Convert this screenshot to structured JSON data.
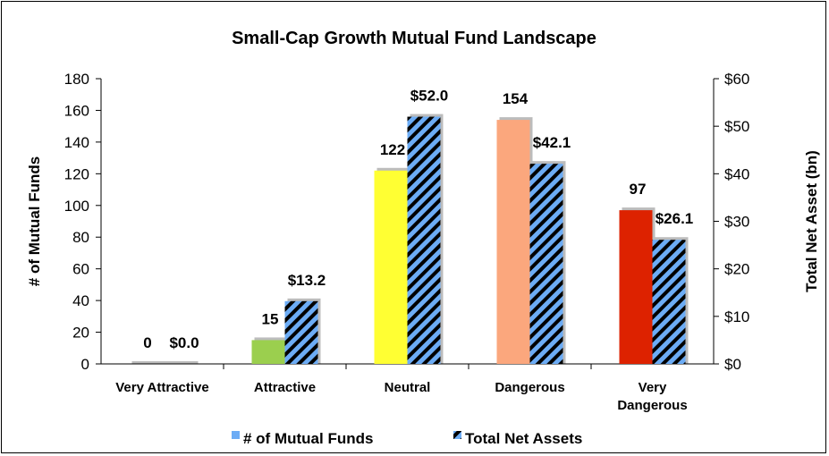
{
  "chart_data": {
    "type": "bar",
    "title": "Small-Cap Growth Mutual Fund Landscape",
    "categories": [
      [
        "Very Attractive"
      ],
      [
        "Attractive"
      ],
      [
        "Neutral"
      ],
      [
        "Dangerous"
      ],
      [
        "Very",
        "Dangerous"
      ]
    ],
    "series": [
      {
        "name": "# of Mutual Funds",
        "axis": "left",
        "values": [
          0,
          15,
          122,
          154,
          97
        ],
        "labels": [
          "0",
          "15",
          "122",
          "154",
          "97"
        ],
        "colors": [
          "#a6a6a6",
          "#9bcf4e",
          "#ffff33",
          "#fba77d",
          "#dd2200"
        ],
        "legend_color": "#6cacf5"
      },
      {
        "name": "Total Net Assets",
        "axis": "right",
        "values": [
          0.0,
          13.2,
          52.0,
          42.1,
          26.1
        ],
        "labels": [
          "$0.0",
          "$13.2",
          "$52.0",
          "$42.1",
          "$26.1"
        ],
        "pattern": "diagonal-stripes",
        "colors": [
          "#6cacf5",
          "#000000"
        ]
      }
    ],
    "ylabel": "# of Mutual Funds",
    "ylim": [
      0,
      180
    ],
    "yticks": [
      "0",
      "20",
      "40",
      "60",
      "80",
      "100",
      "120",
      "140",
      "160",
      "180"
    ],
    "y2label": "Total Net Asset (bn)",
    "y2lim": [
      0,
      60
    ],
    "y2ticks": [
      "$0",
      "$10",
      "$20",
      "$30",
      "$40",
      "$50",
      "$60"
    ],
    "legend_position": "bottom",
    "grid": false
  }
}
